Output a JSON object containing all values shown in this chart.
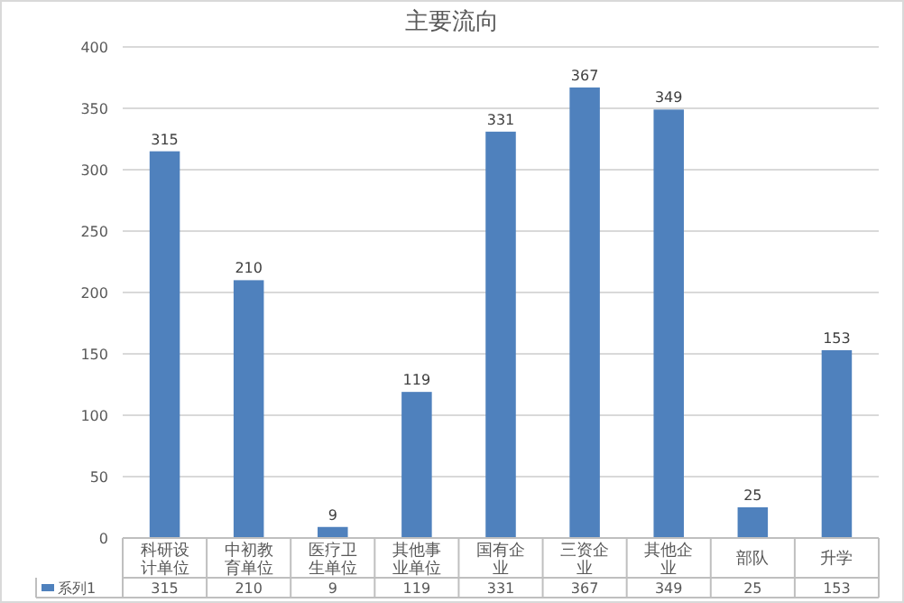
{
  "chart_data": {
    "type": "bar",
    "title": "主要流向",
    "categories": [
      "科研设计单位",
      "中初教育单位",
      "医疗卫生单位",
      "其他事业单位",
      "国有企业",
      "三资企业",
      "其他企业",
      "部队",
      "升学"
    ],
    "series": [
      {
        "name": "系列1",
        "color": "#4f81bd",
        "values": [
          315,
          210,
          9,
          119,
          331,
          367,
          349,
          25,
          153
        ],
        "value_labels": [
          "315",
          "210",
          "9",
          "119",
          "331",
          "367",
          "349",
          "25",
          "153"
        ]
      }
    ],
    "ylim": [
      0,
      400
    ],
    "yticks": [
      0,
      50,
      100,
      150,
      200,
      250,
      300,
      350,
      400
    ],
    "grid": "y",
    "legend": "bottom",
    "data_labels": true
  }
}
